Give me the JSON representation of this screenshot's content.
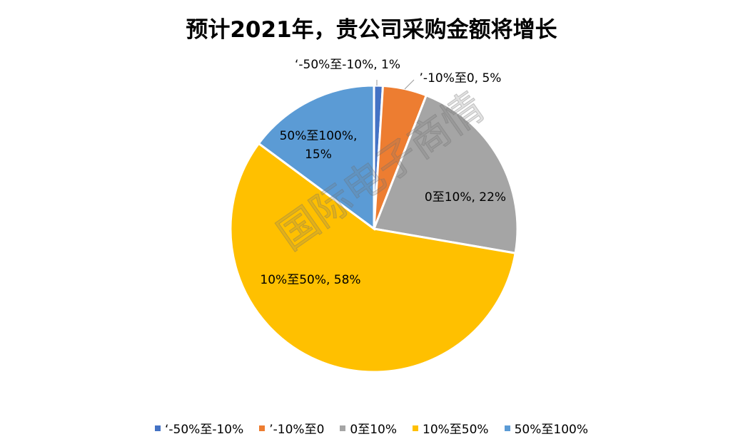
{
  "chart_data": {
    "type": "pie",
    "title": "预计2021年，贵公司采购金额将增长",
    "categories": [
      "‘-50%至-10%",
      "’-10%至0",
      "0至10%",
      "10%至50%",
      "50%至100%"
    ],
    "values": [
      1,
      5,
      22,
      58,
      15
    ],
    "colors": [
      "#4472C4",
      "#ED7D31",
      "#A5A5A5",
      "#FFC000",
      "#5B9BD5"
    ],
    "data_labels": [
      [
        "‘-50%至-10%, 1%"
      ],
      [
        "’-10%至0, 5%"
      ],
      [
        "0至10%, 22%"
      ],
      [
        "10%至50%, 58%"
      ],
      [
        "50%至100%,",
        "15%"
      ]
    ],
    "legend_position": "bottom"
  },
  "watermark": "国际电子商情"
}
